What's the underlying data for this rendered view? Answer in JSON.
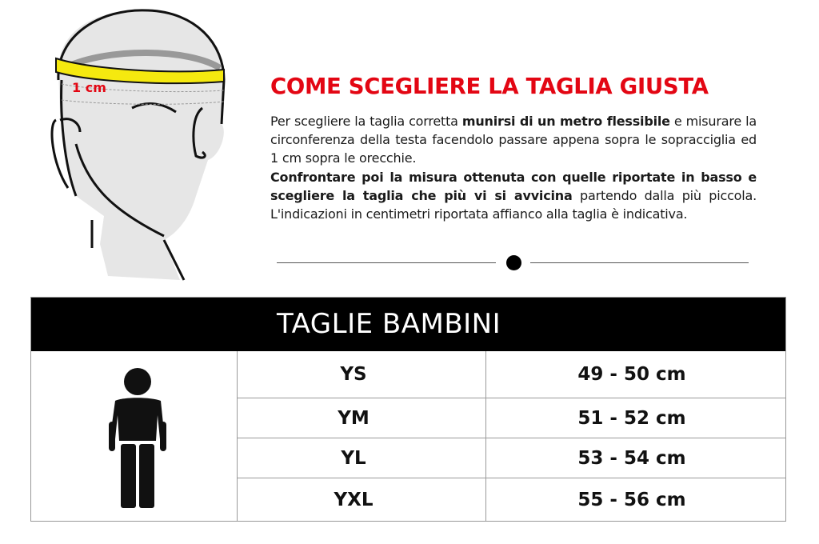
{
  "illustration": {
    "measure_label": "1 cm",
    "tape_color": "#f5e90f"
  },
  "title": "COME SCEGLIERE LA TAGLIA GIUSTA",
  "accent_color": "#e30613",
  "body": {
    "p1_a": "Per scegliere la taglia corretta ",
    "p1_b": "munirsi di un metro flessibile",
    "p1_c": " e misurare la circonferenza della testa facendolo passare appena sopra le sopracciglia ed 1 cm sopra le orecchie.",
    "p2_a": "Confrontare poi la misura ottenuta con quelle riportate in basso e scegliere la taglia che più vi si avvicina",
    "p2_b": " partendo dalla più piccola. L'indicazioni in centimetri riportata affianco alla taglia è indicativa."
  },
  "table": {
    "header": "TAGLIE BAMBINI",
    "icon": "child-figure-icon",
    "rows": [
      {
        "size": "YS",
        "range": "49 - 50 cm"
      },
      {
        "size": "YM",
        "range": "51 - 52 cm"
      },
      {
        "size": "YL",
        "range": "53 - 54 cm"
      },
      {
        "size": "YXL",
        "range": "55 - 56 cm"
      }
    ]
  }
}
